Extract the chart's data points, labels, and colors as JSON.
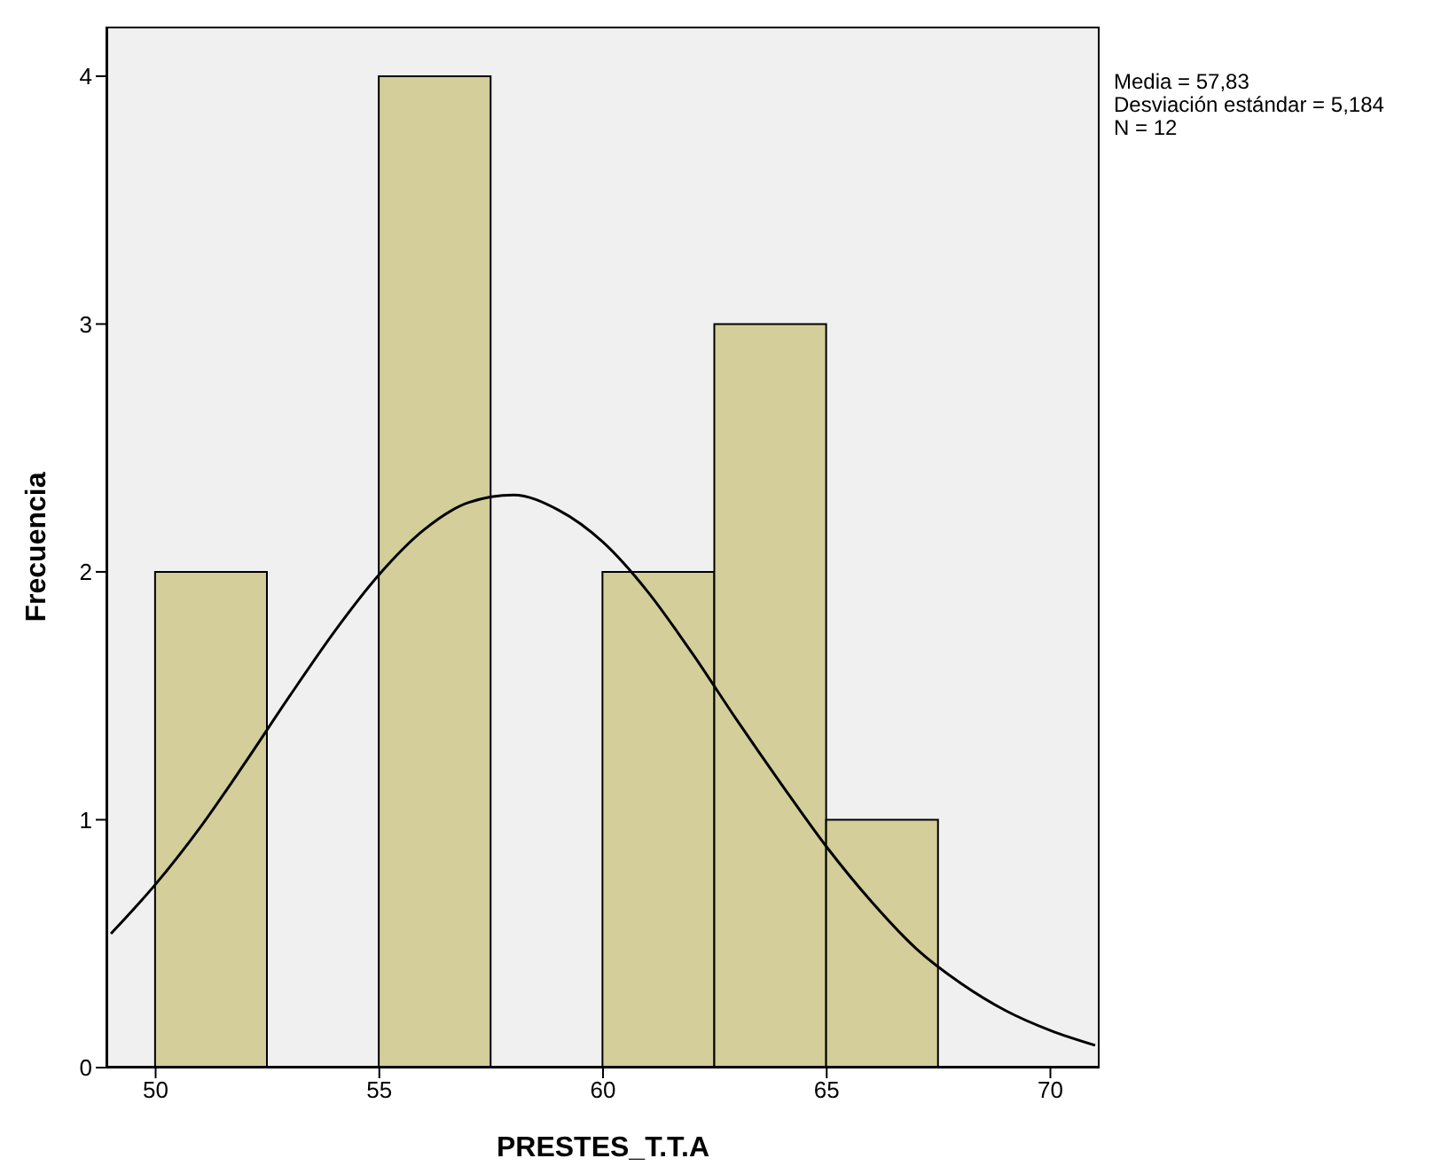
{
  "chart_data": {
    "type": "histogram",
    "xlabel": "PRESTES_T.T.A",
    "ylabel": "Frecuencia",
    "annotations": [
      "Media = 57,83",
      "Desviación estándar = 5,184",
      "N = 12"
    ],
    "xlim": [
      48.9,
      71.1
    ],
    "xticks": [
      50,
      55,
      60,
      65,
      70
    ],
    "ylim": [
      0,
      4.2
    ],
    "yticks": [
      0,
      1,
      2,
      3,
      4
    ],
    "grid": false,
    "legend": false,
    "series": [
      {
        "type": "histogram",
        "color": "#d3ce9a",
        "bins": [
          50,
          52.5,
          55,
          57.5,
          60,
          62.5,
          65,
          67.5
        ],
        "values": [
          2,
          0,
          4,
          0,
          2,
          3,
          1
        ]
      },
      {
        "type": "line",
        "color": "#000000",
        "marker": "none",
        "x": [
          49,
          50,
          51,
          52,
          53,
          54,
          55,
          56,
          57,
          58,
          59,
          60,
          61,
          62,
          63,
          64,
          65,
          66,
          67,
          68,
          69,
          70,
          71
        ],
        "values": [
          0.54,
          0.74,
          0.97,
          1.23,
          1.5,
          1.76,
          1.99,
          2.17,
          2.28,
          2.31,
          2.25,
          2.12,
          1.92,
          1.67,
          1.4,
          1.14,
          0.89,
          0.67,
          0.48,
          0.34,
          0.23,
          0.15,
          0.09
        ]
      }
    ]
  }
}
